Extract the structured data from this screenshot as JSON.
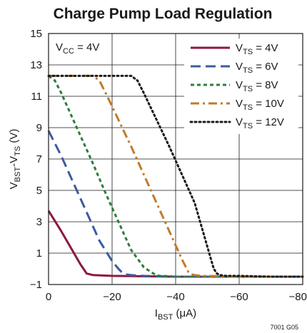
{
  "chart_data": {
    "type": "line",
    "title": "Charge Pump Load Regulation",
    "xlabel": {
      "main": "I",
      "sub": "BST",
      "rest": " (μA)"
    },
    "ylabel": {
      "parts": [
        {
          "t": "V",
          "sub": false
        },
        {
          "t": "BST",
          "sub": true
        },
        {
          "t": "-V",
          "sub": false
        },
        {
          "t": "TS",
          "sub": true
        },
        {
          "t": " (V)",
          "sub": false
        }
      ]
    },
    "xlim": [
      0,
      -80
    ],
    "ylim": [
      -1,
      15
    ],
    "x_ticks": [
      0,
      -20,
      -40,
      -60,
      -80
    ],
    "x_tick_labels": [
      "0",
      "−20",
      "−40",
      "−60",
      "−80"
    ],
    "y_ticks": [
      -1,
      1,
      3,
      5,
      7,
      9,
      11,
      13,
      15
    ],
    "y_tick_labels": [
      "−1",
      "1",
      "3",
      "5",
      "7",
      "9",
      "11",
      "13",
      "15"
    ],
    "grid": true,
    "legend_position": "top-right",
    "annotation": {
      "main": "V",
      "sub": "CC",
      "rest": " = 4V"
    },
    "footer_code": "7001 G05",
    "series": [
      {
        "name": {
          "main": "V",
          "sub": "TS",
          "rest": " = 4V"
        },
        "color": "#8b1a3c",
        "style": "solid",
        "x": [
          0,
          -4,
          -8,
          -10,
          -11,
          -12,
          -14,
          -20,
          -40,
          -60,
          -80
        ],
        "y": [
          3.7,
          2.4,
          1.0,
          0.3,
          0.0,
          -0.3,
          -0.4,
          -0.45,
          -0.5,
          -0.5,
          -0.5
        ]
      },
      {
        "name": {
          "main": "V",
          "sub": "TS",
          "rest": " = 6V"
        },
        "color": "#3b5ba0",
        "style": "dash",
        "x": [
          0,
          -4,
          -8,
          -12,
          -16,
          -20,
          -22,
          -23,
          -24,
          -26,
          -30,
          -40,
          -60,
          -80
        ],
        "y": [
          8.8,
          7.2,
          5.4,
          3.6,
          1.8,
          0.5,
          0.0,
          -0.2,
          -0.35,
          -0.4,
          -0.45,
          -0.5,
          -0.5,
          -0.5
        ]
      },
      {
        "name": {
          "main": "V",
          "sub": "TS",
          "rest": " = 8V"
        },
        "color": "#2e7d3c",
        "style": "shortdash",
        "x": [
          0,
          -2,
          -4,
          -6,
          -10,
          -14,
          -18,
          -22,
          -26,
          -30,
          -33,
          -34,
          -35,
          -36,
          -40,
          -60,
          -80
        ],
        "y": [
          12.3,
          12.0,
          11.2,
          10.3,
          8.5,
          6.7,
          4.8,
          3.0,
          1.2,
          0.1,
          -0.3,
          -0.4,
          -0.45,
          -0.45,
          -0.5,
          -0.5,
          -0.5
        ]
      },
      {
        "name": {
          "main": "V",
          "sub": "TS",
          "rest": " = 10V"
        },
        "color": "#c07b2a",
        "style": "dashdot",
        "x": [
          0,
          -5,
          -10,
          -14,
          -16,
          -18,
          -22,
          -26,
          -30,
          -34,
          -38,
          -42,
          -44,
          -45,
          -46,
          -48,
          -50,
          -60,
          -80
        ],
        "y": [
          12.3,
          12.3,
          12.3,
          12.3,
          12.0,
          11.2,
          9.5,
          7.8,
          6.0,
          4.2,
          2.4,
          0.6,
          -0.2,
          -0.35,
          -0.4,
          -0.45,
          -0.45,
          -0.5,
          -0.5
        ]
      },
      {
        "name": {
          "main": "V",
          "sub": "TS",
          "rest": " = 12V"
        },
        "color": "#1a1a1a",
        "style": "dot",
        "x": [
          0,
          -10,
          -20,
          -26,
          -28,
          -30,
          -34,
          -38,
          -42,
          -46,
          -50,
          -52,
          -53,
          -54,
          -56,
          -60,
          -70,
          -80
        ],
        "y": [
          12.3,
          12.3,
          12.3,
          12.3,
          12.0,
          11.2,
          9.5,
          7.8,
          6.0,
          4.2,
          1.4,
          0.0,
          -0.3,
          -0.4,
          -0.45,
          -0.45,
          -0.5,
          -0.5
        ]
      }
    ]
  }
}
